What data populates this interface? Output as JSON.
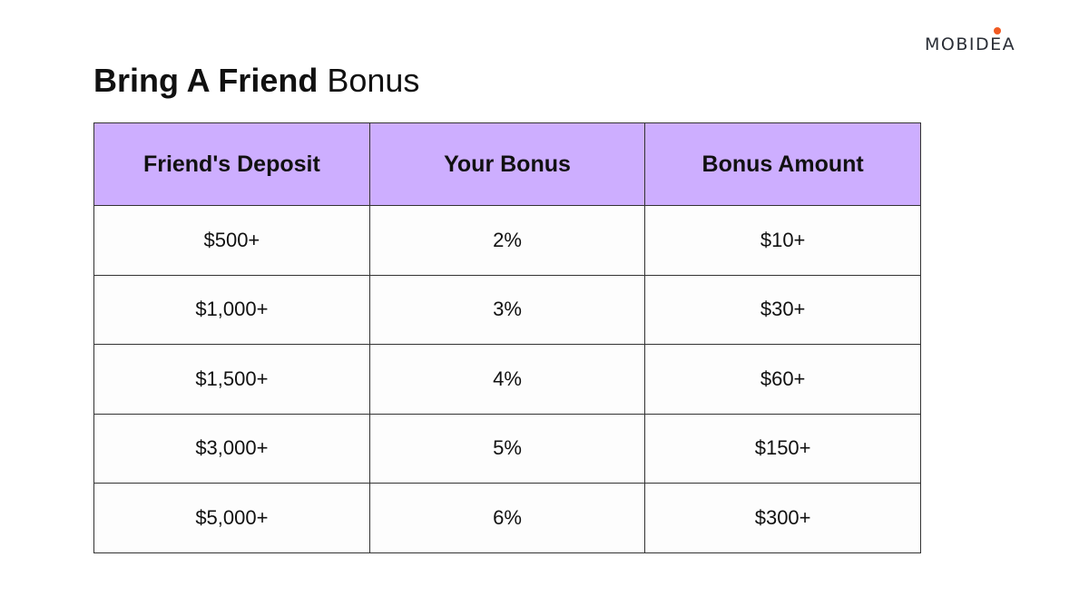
{
  "brand": {
    "logo_text": "MOBIDEA",
    "accent_color": "#f05a22"
  },
  "title": {
    "bold": "Bring A Friend",
    "regular": "Bonus"
  },
  "table": {
    "header_color": "#cdaeff",
    "headers": [
      "Friend's Deposit",
      "Your Bonus",
      "Bonus Amount"
    ],
    "rows": [
      [
        "$500+",
        "2%",
        "$10+"
      ],
      [
        "$1,000+",
        "3%",
        "$30+"
      ],
      [
        "$1,500+",
        "4%",
        "$60+"
      ],
      [
        "$3,000+",
        "5%",
        "$150+"
      ],
      [
        "$5,000+",
        "6%",
        "$300+"
      ]
    ]
  }
}
